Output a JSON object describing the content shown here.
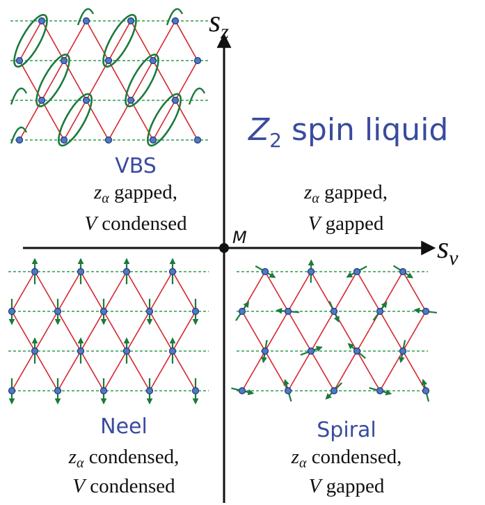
{
  "axes": {
    "vertical": {
      "symbol": "s",
      "subscript": "z"
    },
    "horizontal": {
      "symbol": "s",
      "subscript": "v"
    },
    "origin": "M"
  },
  "title": {
    "main": "Z",
    "subscript": "2",
    "rest": " spin liquid"
  },
  "quadrants": [
    {
      "name": "VBS",
      "lines": [
        {
          "symbol": "z",
          "subscript": "α",
          "text": " gapped,"
        },
        {
          "symbol": "V",
          "text": " condensed"
        }
      ]
    },
    {
      "lines": [
        {
          "symbol": "z",
          "subscript": "α",
          "text": " gapped,"
        },
        {
          "symbol": "V",
          "text": " gapped"
        }
      ]
    },
    {
      "name": "Neel",
      "lines": [
        {
          "symbol": "z",
          "subscript": "α",
          "text": " condensed,"
        },
        {
          "symbol": "V",
          "text": " condensed"
        }
      ]
    },
    {
      "name": "Spiral",
      "lines": [
        {
          "symbol": "z",
          "subscript": "α",
          "text": " condensed,"
        },
        {
          "symbol": "V",
          "text": " gapped"
        }
      ]
    }
  ]
}
